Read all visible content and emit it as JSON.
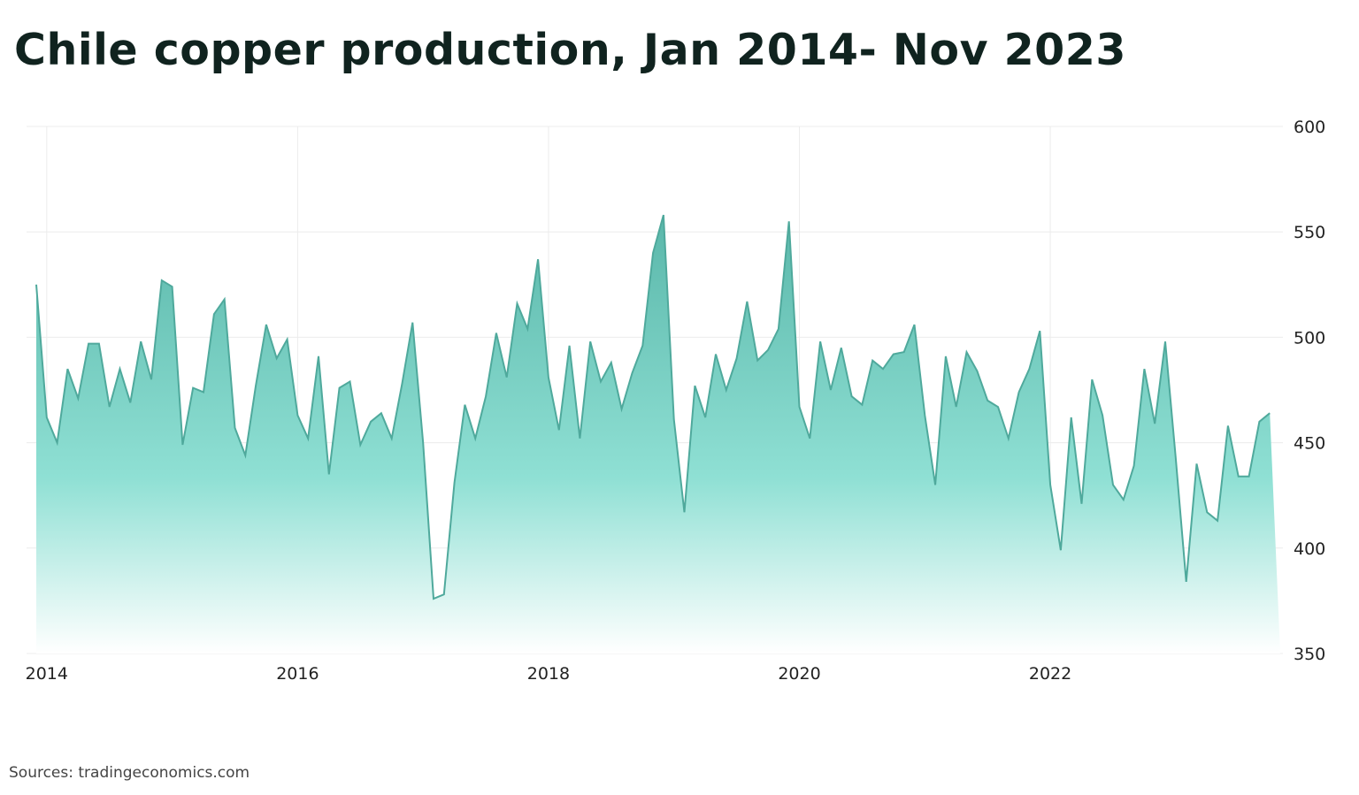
{
  "title": "Chile copper production, Jan 2014- Nov 2023",
  "source": "Sources: tradingeconomics.com",
  "colors": {
    "line": "#4fa99c",
    "fill_top": "#5ab7aa",
    "fill_mid": "#8fe0d4",
    "fill_bottom": "#ffffff",
    "grid": "#ececec"
  },
  "chart_data": {
    "type": "area",
    "title": "Chile copper production, Jan 2014- Nov 2023",
    "xlabel": "",
    "ylabel": "",
    "ylim": [
      350,
      600
    ],
    "yticks": [
      350,
      400,
      450,
      500,
      550,
      600
    ],
    "xticks": [
      "2014",
      "2016",
      "2018",
      "2020",
      "2022"
    ],
    "grid": true,
    "y_axis_side": "right",
    "x_start": "2013-12",
    "x_end": "2023-11",
    "frequency": "monthly",
    "values": [
      525,
      462,
      450,
      485,
      471,
      497,
      497,
      467,
      485,
      469,
      498,
      480,
      527,
      524,
      449,
      476,
      474,
      511,
      518,
      457,
      444,
      477,
      506,
      490,
      499,
      463,
      452,
      491,
      435,
      476,
      479,
      449,
      460,
      464,
      452,
      478,
      507,
      450,
      376,
      378,
      431,
      468,
      452,
      472,
      502,
      481,
      516,
      504,
      537,
      481,
      456,
      496,
      452,
      498,
      479,
      488,
      466,
      483,
      496,
      540,
      558,
      461,
      417,
      477,
      462,
      492,
      475,
      490,
      517,
      489,
      494,
      504,
      555,
      467,
      452,
      498,
      475,
      495,
      472,
      468,
      489,
      485,
      492,
      493,
      506,
      463,
      430,
      491,
      467,
      493,
      484,
      470,
      467,
      452,
      474,
      485,
      503,
      430,
      399,
      462,
      421,
      480,
      463,
      430,
      423,
      439,
      485,
      459,
      498,
      443,
      384,
      440,
      417,
      413,
      458,
      434,
      434,
      460,
      464
    ]
  }
}
